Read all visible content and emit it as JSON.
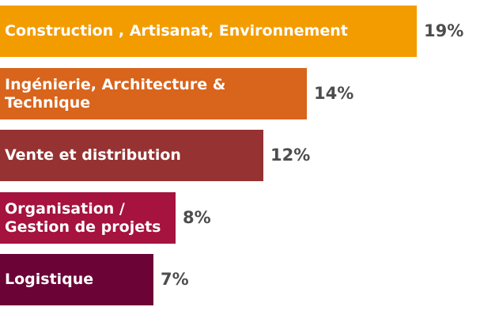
{
  "chart_data": {
    "type": "bar",
    "orientation": "horizontal",
    "categories": [
      "Construction , Artisanat, Environnement",
      "Ingénierie, Architecture &\nTechnique",
      "Vente et distribution",
      "Organisation /\nGestion de projets",
      "Logistique"
    ],
    "values": [
      19,
      14,
      12,
      8,
      7
    ],
    "value_labels": [
      "19%",
      "14%",
      "12%",
      "8%",
      "7%"
    ],
    "colors": [
      "#f39c00",
      "#d9641c",
      "#963232",
      "#a5133e",
      "#6b0336"
    ],
    "title": "",
    "xlabel": "",
    "ylabel": "",
    "legend": "none",
    "grid": false
  }
}
